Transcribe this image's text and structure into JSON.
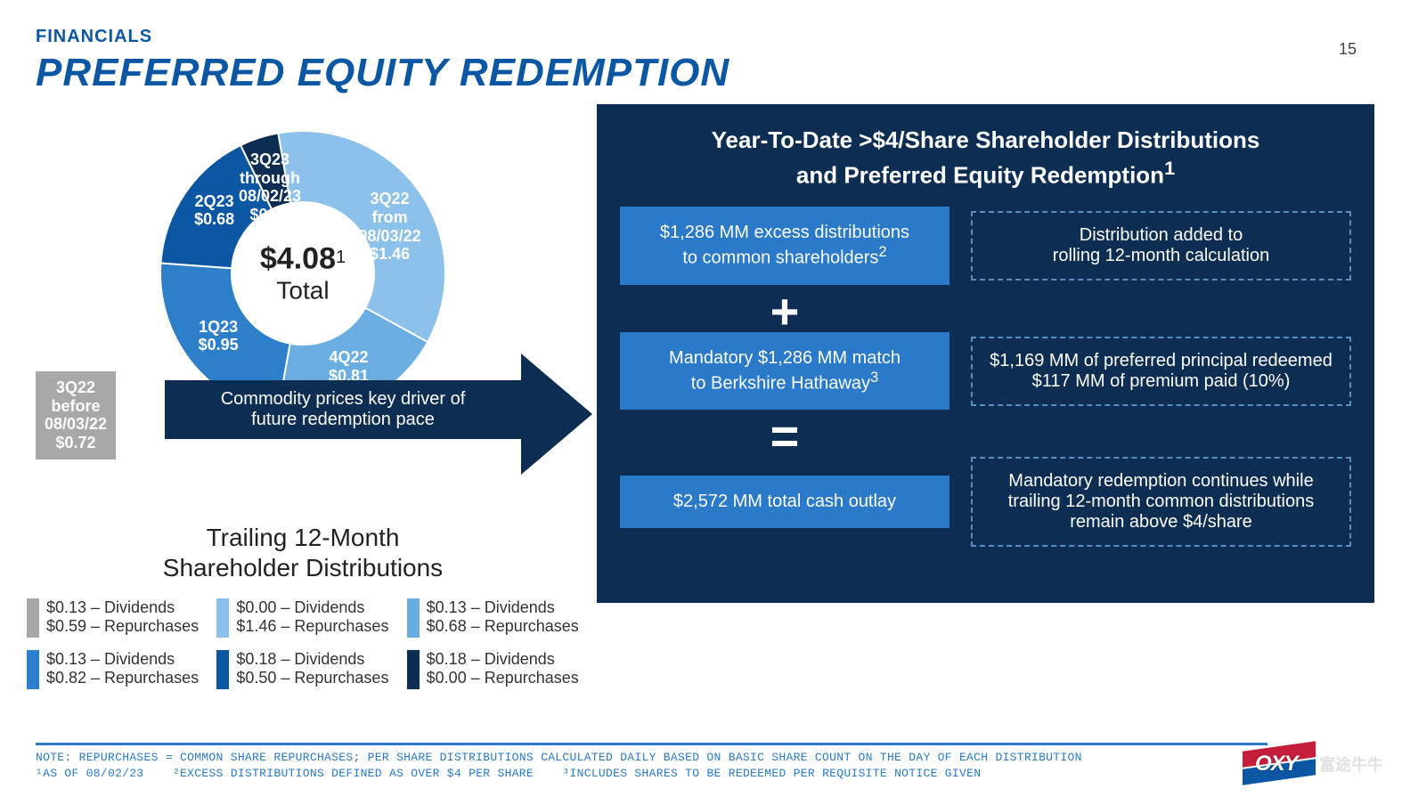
{
  "header": {
    "section": "FINANCIALS",
    "title": "PREFERRED EQUITY REDEMPTION",
    "page_number": "15"
  },
  "donut": {
    "type": "donut",
    "center_value": "$4.08",
    "center_superscript": "1",
    "center_label": "Total",
    "background_color": "#ffffff",
    "inner_radius_pct": 48,
    "outer_radius_pct": 100,
    "slices": [
      {
        "label_line1": "3Q22",
        "label_line2": "from",
        "label_line3": "08/03/22",
        "label_line4": "$1.46",
        "value": 1.46,
        "color": "#8bc1ea"
      },
      {
        "label_line1": "4Q22",
        "label_line2": "$0.81",
        "value": 0.81,
        "color": "#6aaee1"
      },
      {
        "label_line1": "1Q23",
        "label_line2": "$0.95",
        "value": 0.95,
        "color": "#2d7fc9"
      },
      {
        "label_line1": "2Q23",
        "label_line2": "$0.68",
        "value": 0.68,
        "color": "#0b57a4"
      },
      {
        "label_line1": "3Q23",
        "label_line2": "through",
        "label_line3": "08/02/23",
        "label_line4": "$0.18",
        "value": 0.18,
        "color": "#0d2e52"
      }
    ],
    "label_fontsize": 18,
    "label_color": "#ffffff"
  },
  "grey_callout": {
    "line1": "3Q22",
    "line2": "before",
    "line3": "08/03/22",
    "line4": "$0.72",
    "background_color": "#a8a8a8",
    "text_color": "#ffffff"
  },
  "arrow_text": {
    "line1": "Commodity prices key driver of",
    "line2": "future redemption pace",
    "background_color": "#0d2e52",
    "text_color": "#ffffff"
  },
  "trailing_title": {
    "line1": "Trailing 12-Month",
    "line2": "Shareholder Distributions"
  },
  "legend": {
    "items": [
      {
        "color": "#a8a8a8",
        "dividends": "$0.13 – Dividends",
        "repurchases": "$0.59 – Repurchases"
      },
      {
        "color": "#8bc1ea",
        "dividends": "$0.00 – Dividends",
        "repurchases": "$1.46 – Repurchases"
      },
      {
        "color": "#6aaee1",
        "dividends": "$0.13 – Dividends",
        "repurchases": "$0.68 – Repurchases"
      },
      {
        "color": "#2d7fc9",
        "dividends": "$0.13 – Dividends",
        "repurchases": "$0.82 – Repurchases"
      },
      {
        "color": "#0b57a4",
        "dividends": "$0.18 – Dividends",
        "repurchases": "$0.50 – Repurchases"
      },
      {
        "color": "#0d2e52",
        "dividends": "$0.18 – Dividends",
        "repurchases": "$0.00 – Repurchases"
      }
    ],
    "swatch_width": 14,
    "swatch_height": 44,
    "fontsize": 18
  },
  "right_panel": {
    "background_color": "#0d2e52",
    "title_line1": "Year-To-Date >$4/Share Shareholder Distributions",
    "title_line2": "and Preferred Equity Redemption",
    "title_superscript": "1",
    "solid_box_color": "#2b7ac9",
    "dashed_border_color": "#5b8fbb",
    "rows": [
      {
        "solid_line1": "$1,286 MM excess distributions",
        "solid_line2": "to common shareholders",
        "solid_sup": "2",
        "dashed_line1": "Distribution added to",
        "dashed_line2": "rolling 12-month calculation"
      },
      {
        "solid_line1": "Mandatory $1,286 MM match",
        "solid_line2": "to Berkshire Hathaway",
        "solid_sup": "3",
        "dashed_line1": "$1,169 MM of preferred principal redeemed",
        "dashed_line2": "$117 MM of premium paid (10%)"
      },
      {
        "solid_line1": "$2,572 MM total cash outlay",
        "solid_line2": "",
        "dashed_line1": "Mandatory redemption continues while trailing 12-month common distributions remain above $4/share",
        "dashed_line2": ""
      }
    ],
    "plus_symbol": "+",
    "equals_symbol": "="
  },
  "footnote": {
    "line1": "NOTE: REPURCHASES = COMMON SHARE REPURCHASES; PER SHARE DISTRIBUTIONS CALCULATED DAILY BASED ON BASIC SHARE COUNT ON THE DAY OF EACH DISTRIBUTION",
    "line2_a": "¹AS OF 08/02/23",
    "line2_b": "²EXCESS DISTRIBUTIONS DEFINED AS OVER $4 PER SHARE",
    "line2_c": "³INCLUDES SHARES TO BE REDEEMED PER REQUISITE NOTICE GIVEN",
    "color": "#2b7ac9"
  },
  "logo": {
    "text": "OXY",
    "top_color": "#c41e3a",
    "bottom_color": "#0b57a4",
    "watermark": "富途牛牛"
  }
}
